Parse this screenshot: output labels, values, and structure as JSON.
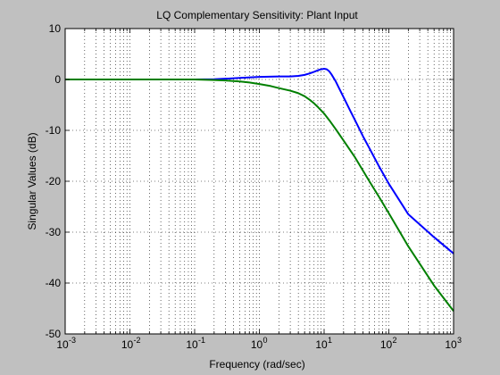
{
  "figure": {
    "background": "#c0c0c0",
    "axes_background": "#ffffff"
  },
  "chart_data": {
    "type": "line",
    "title": "LQ Complementary Sensitivity: Plant Input",
    "xlabel": "Frequency (rad/sec)",
    "ylabel": "Singular Values (dB)",
    "xscale": "log",
    "xlim": [
      0.001,
      1000
    ],
    "ylim": [
      -50,
      10
    ],
    "grid": true,
    "x_ticks": [
      {
        "base": "10",
        "exp": "-3"
      },
      {
        "base": "10",
        "exp": "-2"
      },
      {
        "base": "10",
        "exp": "-1"
      },
      {
        "base": "10",
        "exp": "0"
      },
      {
        "base": "10",
        "exp": "1"
      },
      {
        "base": "10",
        "exp": "2"
      },
      {
        "base": "10",
        "exp": "3"
      }
    ],
    "y_ticks": [
      "10",
      "0",
      "-10",
      "-20",
      "-30",
      "-40",
      "-50"
    ],
    "series": [
      {
        "color": "#0000ff",
        "x": [
          0.001,
          0.01,
          0.1,
          0.2,
          0.3,
          0.5,
          1,
          2,
          3,
          4,
          5,
          6,
          7,
          8,
          9,
          10,
          11,
          12,
          13,
          15,
          17,
          20,
          25,
          30,
          40,
          50,
          70,
          100,
          200,
          500,
          1000
        ],
        "y": [
          0,
          0,
          0,
          0.05,
          0.15,
          0.3,
          0.5,
          0.6,
          0.6,
          0.7,
          0.9,
          1.2,
          1.5,
          1.8,
          2.0,
          2.1,
          2.0,
          1.6,
          1.0,
          -0.3,
          -1.7,
          -3.5,
          -6.0,
          -8.0,
          -11.2,
          -13.5,
          -17.0,
          -20.5,
          -26.5,
          -31.0,
          -34.2
        ]
      },
      {
        "color": "#007f00",
        "x": [
          0.001,
          0.01,
          0.1,
          0.2,
          0.3,
          0.5,
          0.7,
          1,
          1.5,
          2,
          3,
          4,
          5,
          6,
          7,
          8,
          10,
          12,
          15,
          20,
          30,
          50,
          70,
          100,
          200,
          500,
          1000
        ],
        "y": [
          0,
          0,
          0,
          -0.1,
          -0.2,
          -0.4,
          -0.6,
          -0.9,
          -1.3,
          -1.7,
          -2.2,
          -2.7,
          -3.3,
          -4.0,
          -4.7,
          -5.4,
          -6.7,
          -8.0,
          -9.7,
          -12.0,
          -15.3,
          -20.0,
          -23.0,
          -26.3,
          -32.8,
          -40.5,
          -45.5
        ]
      }
    ]
  }
}
